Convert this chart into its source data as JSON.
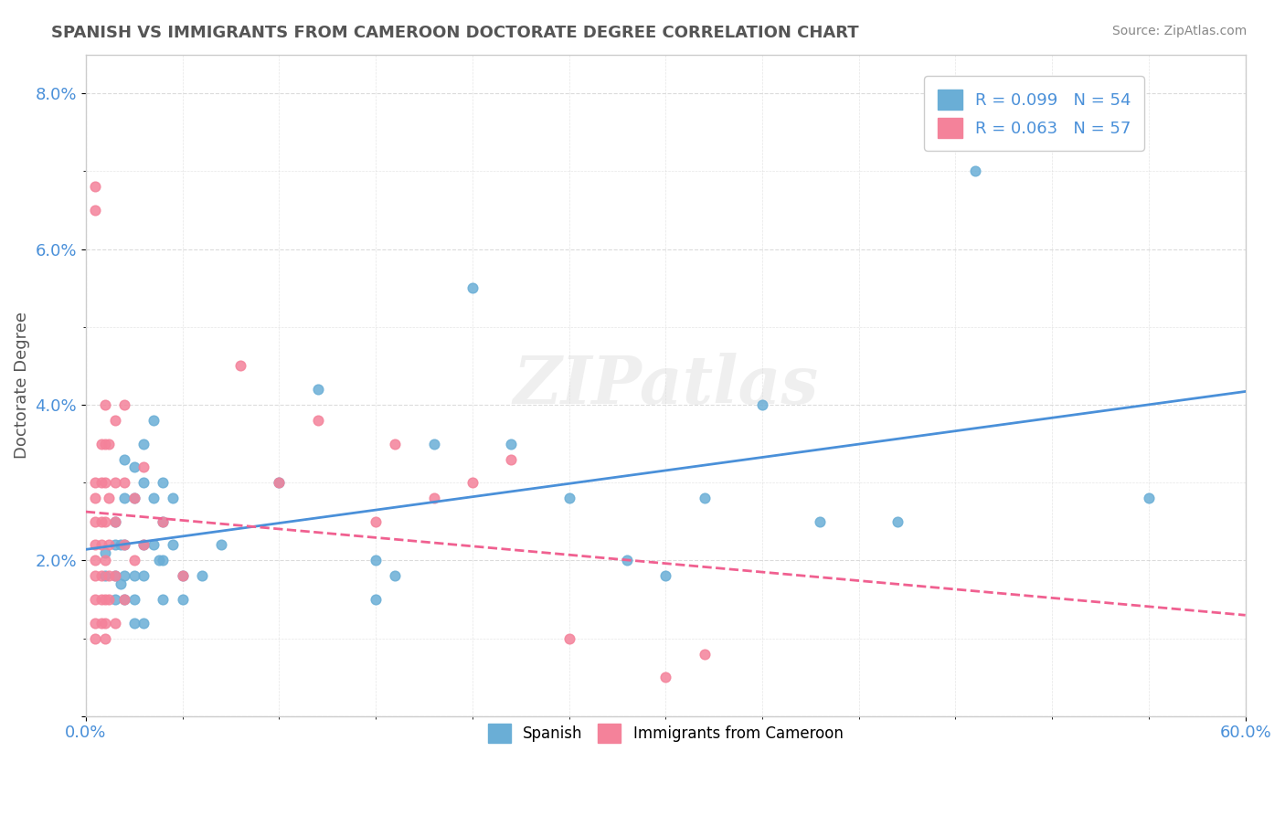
{
  "title": "SPANISH VS IMMIGRANTS FROM CAMEROON DOCTORATE DEGREE CORRELATION CHART",
  "source": "Source: ZipAtlas.com",
  "xlabel": "",
  "ylabel": "Doctorate Degree",
  "xlim": [
    0.0,
    0.6
  ],
  "ylim": [
    0.0,
    0.085
  ],
  "ytick_labels": [
    "",
    "2.0%",
    "4.0%",
    "6.0%",
    "8.0%"
  ],
  "ytick_values": [
    0.0,
    0.02,
    0.04,
    0.06,
    0.08
  ],
  "xtick_labels": [
    "0.0%",
    "60.0%"
  ],
  "xtick_values": [
    0.0,
    0.6
  ],
  "legend_entries": [
    {
      "label": "R = 0.099   N = 54",
      "color": "#a8c4e0"
    },
    {
      "label": "R = 0.063   N = 57",
      "color": "#f4a0b0"
    }
  ],
  "watermark": "ZIPatlas",
  "blue_color": "#6aaed6",
  "pink_color": "#f4829a",
  "blue_line_color": "#4a90d9",
  "pink_line_color": "#f06090",
  "grid_color": "#cccccc",
  "spanish_points": [
    [
      0.01,
      0.021
    ],
    [
      0.01,
      0.018
    ],
    [
      0.015,
      0.025
    ],
    [
      0.015,
      0.022
    ],
    [
      0.015,
      0.018
    ],
    [
      0.015,
      0.015
    ],
    [
      0.018,
      0.022
    ],
    [
      0.018,
      0.017
    ],
    [
      0.02,
      0.033
    ],
    [
      0.02,
      0.028
    ],
    [
      0.02,
      0.022
    ],
    [
      0.02,
      0.018
    ],
    [
      0.02,
      0.015
    ],
    [
      0.025,
      0.032
    ],
    [
      0.025,
      0.028
    ],
    [
      0.025,
      0.018
    ],
    [
      0.025,
      0.015
    ],
    [
      0.025,
      0.012
    ],
    [
      0.03,
      0.035
    ],
    [
      0.03,
      0.03
    ],
    [
      0.03,
      0.022
    ],
    [
      0.03,
      0.018
    ],
    [
      0.03,
      0.012
    ],
    [
      0.035,
      0.038
    ],
    [
      0.035,
      0.028
    ],
    [
      0.035,
      0.022
    ],
    [
      0.038,
      0.02
    ],
    [
      0.04,
      0.03
    ],
    [
      0.04,
      0.025
    ],
    [
      0.04,
      0.02
    ],
    [
      0.04,
      0.015
    ],
    [
      0.045,
      0.028
    ],
    [
      0.045,
      0.022
    ],
    [
      0.05,
      0.018
    ],
    [
      0.05,
      0.015
    ],
    [
      0.06,
      0.018
    ],
    [
      0.07,
      0.022
    ],
    [
      0.1,
      0.03
    ],
    [
      0.12,
      0.042
    ],
    [
      0.15,
      0.02
    ],
    [
      0.15,
      0.015
    ],
    [
      0.16,
      0.018
    ],
    [
      0.18,
      0.035
    ],
    [
      0.2,
      0.055
    ],
    [
      0.22,
      0.035
    ],
    [
      0.25,
      0.028
    ],
    [
      0.28,
      0.02
    ],
    [
      0.3,
      0.018
    ],
    [
      0.32,
      0.028
    ],
    [
      0.35,
      0.04
    ],
    [
      0.38,
      0.025
    ],
    [
      0.42,
      0.025
    ],
    [
      0.46,
      0.07
    ],
    [
      0.55,
      0.028
    ]
  ],
  "cameroon_points": [
    [
      0.005,
      0.03
    ],
    [
      0.005,
      0.028
    ],
    [
      0.005,
      0.025
    ],
    [
      0.005,
      0.022
    ],
    [
      0.005,
      0.02
    ],
    [
      0.005,
      0.018
    ],
    [
      0.005,
      0.015
    ],
    [
      0.005,
      0.012
    ],
    [
      0.005,
      0.01
    ],
    [
      0.005,
      0.065
    ],
    [
      0.005,
      0.068
    ],
    [
      0.008,
      0.035
    ],
    [
      0.008,
      0.03
    ],
    [
      0.008,
      0.025
    ],
    [
      0.008,
      0.022
    ],
    [
      0.008,
      0.018
    ],
    [
      0.008,
      0.015
    ],
    [
      0.008,
      0.012
    ],
    [
      0.01,
      0.04
    ],
    [
      0.01,
      0.035
    ],
    [
      0.01,
      0.03
    ],
    [
      0.01,
      0.025
    ],
    [
      0.01,
      0.02
    ],
    [
      0.01,
      0.015
    ],
    [
      0.01,
      0.012
    ],
    [
      0.01,
      0.01
    ],
    [
      0.012,
      0.035
    ],
    [
      0.012,
      0.028
    ],
    [
      0.012,
      0.022
    ],
    [
      0.012,
      0.018
    ],
    [
      0.012,
      0.015
    ],
    [
      0.015,
      0.038
    ],
    [
      0.015,
      0.03
    ],
    [
      0.015,
      0.025
    ],
    [
      0.015,
      0.018
    ],
    [
      0.015,
      0.012
    ],
    [
      0.02,
      0.04
    ],
    [
      0.02,
      0.03
    ],
    [
      0.02,
      0.022
    ],
    [
      0.02,
      0.015
    ],
    [
      0.025,
      0.028
    ],
    [
      0.025,
      0.02
    ],
    [
      0.03,
      0.032
    ],
    [
      0.03,
      0.022
    ],
    [
      0.04,
      0.025
    ],
    [
      0.05,
      0.018
    ],
    [
      0.08,
      0.045
    ],
    [
      0.1,
      0.03
    ],
    [
      0.12,
      0.038
    ],
    [
      0.15,
      0.025
    ],
    [
      0.16,
      0.035
    ],
    [
      0.18,
      0.028
    ],
    [
      0.2,
      0.03
    ],
    [
      0.22,
      0.033
    ],
    [
      0.25,
      0.01
    ],
    [
      0.3,
      0.005
    ],
    [
      0.32,
      0.008
    ]
  ],
  "spanish_R": 0.099,
  "spanish_N": 54,
  "cameroon_R": 0.063,
  "cameroon_N": 57
}
